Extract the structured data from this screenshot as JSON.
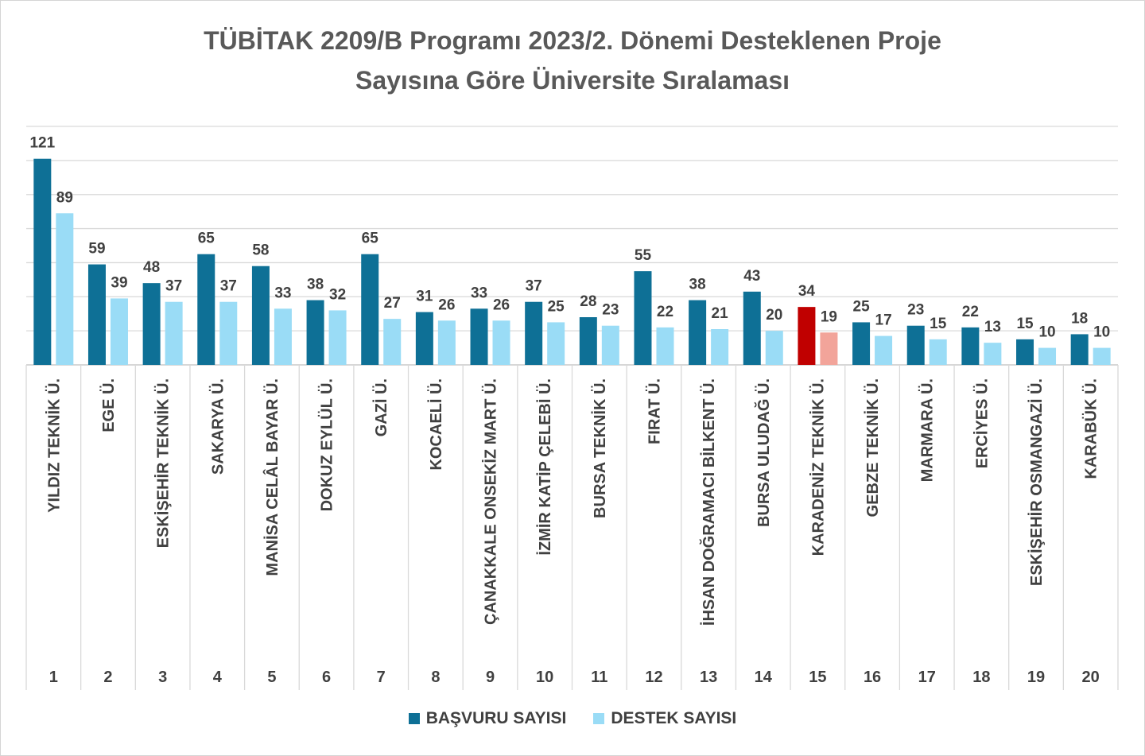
{
  "chart_data": {
    "type": "bar",
    "title_line1": "TÜBİTAK 2209/B Programı 2023/2. Dönemi Desteklenen Proje",
    "title_line2": "Sayısına Göre Üniversite Sıralaması",
    "categories": [
      "YILDIZ TEKNİK Ü.",
      "EGE Ü.",
      "ESKİŞEHİR TEKNİK Ü.",
      "SAKARYA Ü.",
      "MANİSA CELÂL BAYAR Ü.",
      "DOKUZ EYLÜL Ü.",
      "GAZİ Ü.",
      "KOCAELİ Ü.",
      "ÇANAKKALE ONSEKİZ MART Ü.",
      "İZMİR KATİP ÇELEBİ Ü.",
      "BURSA TEKNİK Ü.",
      "FIRAT Ü.",
      "İHSAN DOĞRAMACI BİLKENT Ü.",
      "BURSA ULUDAĞ Ü.",
      "KARADENİZ TEKNİK Ü.",
      "GEBZE TEKNİK Ü.",
      "MARMARA Ü.",
      "ERCİYES Ü.",
      "ESKİŞEHİR OSMANGAZİ Ü.",
      "KARABÜK Ü."
    ],
    "ranks": [
      "1",
      "2",
      "3",
      "4",
      "5",
      "6",
      "7",
      "8",
      "9",
      "10",
      "11",
      "12",
      "13",
      "14",
      "15",
      "16",
      "17",
      "18",
      "19",
      "20"
    ],
    "series": [
      {
        "name": "BAŞVURU SAYISI",
        "color": "#0e7096",
        "values": [
          121,
          59,
          48,
          65,
          58,
          38,
          65,
          31,
          33,
          37,
          28,
          55,
          38,
          43,
          34,
          25,
          23,
          22,
          15,
          18
        ]
      },
      {
        "name": "DESTEK SAYISI",
        "color": "#9adcf6",
        "values": [
          89,
          39,
          37,
          37,
          33,
          32,
          27,
          26,
          26,
          25,
          23,
          22,
          21,
          20,
          19,
          17,
          15,
          13,
          10,
          10
        ]
      }
    ],
    "highlight": {
      "category_index": 14,
      "colors": [
        "#c00000",
        "#f2a49a"
      ]
    },
    "ylim": [
      0,
      140
    ],
    "grid": true,
    "legend_position": "bottom",
    "label_color": "#404040"
  }
}
